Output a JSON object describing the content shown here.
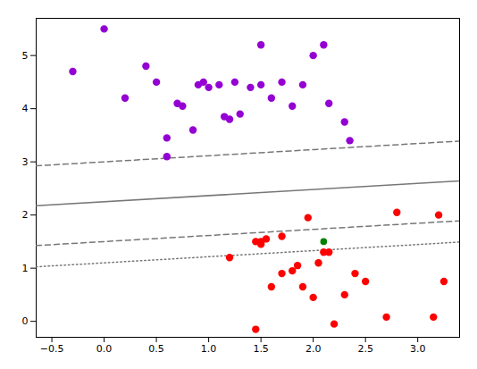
{
  "chart_data": {
    "type": "scatter",
    "xlim": [
      -0.65,
      3.4
    ],
    "ylim": [
      -0.3,
      5.7
    ],
    "xticks": [
      {
        "value": -0.5,
        "label": "−0.5"
      },
      {
        "value": 0,
        "label": "0.0"
      },
      0.5,
      {
        "value": 1,
        "label": "1.0"
      },
      1.5,
      {
        "value": 2,
        "label": "2.0"
      },
      2.5,
      {
        "value": 3,
        "label": "3.0"
      }
    ],
    "yticks": [
      0,
      1,
      2,
      3,
      4,
      5
    ],
    "grid": false,
    "series": [
      {
        "type": "scatter",
        "color": "#9400D3",
        "x": [
          -0.3,
          0.0,
          0.2,
          0.4,
          0.5,
          0.6,
          0.7,
          0.75,
          0.85,
          0.9,
          0.95,
          1.0,
          1.1,
          1.15,
          1.2,
          1.25,
          1.3,
          1.4,
          1.5,
          1.5,
          1.6,
          1.7,
          1.8,
          1.9,
          2.0,
          2.1,
          2.15,
          2.3,
          0.6,
          2.35
        ],
        "values": [
          4.7,
          5.5,
          4.2,
          4.8,
          4.5,
          3.45,
          4.1,
          4.05,
          3.6,
          4.45,
          4.5,
          4.4,
          4.45,
          3.85,
          3.8,
          4.5,
          3.9,
          4.4,
          4.45,
          5.2,
          4.2,
          4.5,
          4.05,
          4.45,
          5.0,
          5.2,
          4.1,
          3.75,
          3.1,
          3.4
        ]
      },
      {
        "type": "scatter",
        "color": "#FF0000",
        "x": [
          1.2,
          1.45,
          1.5,
          1.5,
          1.55,
          1.45,
          1.6,
          1.7,
          1.7,
          1.8,
          1.85,
          1.9,
          1.95,
          2.0,
          2.05,
          2.1,
          2.15,
          2.2,
          2.3,
          2.4,
          2.5,
          2.7,
          2.8,
          3.15,
          3.2,
          3.25
        ],
        "values": [
          1.2,
          1.5,
          1.5,
          1.45,
          1.55,
          -0.15,
          0.65,
          0.9,
          1.6,
          0.95,
          1.05,
          0.65,
          1.95,
          0.45,
          1.1,
          1.3,
          1.3,
          -0.05,
          0.5,
          0.9,
          0.75,
          0.08,
          2.05,
          0.08,
          2.0,
          0.75
        ]
      },
      {
        "type": "scatter",
        "color": "#008000",
        "x": [
          2.1
        ],
        "values": [
          1.5
        ]
      },
      {
        "type": "line",
        "color": "#777777",
        "line_style": "solid",
        "x": [
          -0.65,
          3.4
        ],
        "values": [
          2.17525,
          2.641
        ]
      },
      {
        "type": "line",
        "color": "#777777",
        "line_style": "dashed",
        "x": [
          -0.65,
          3.4
        ],
        "values": [
          2.92525,
          3.391
        ]
      },
      {
        "type": "line",
        "color": "#777777",
        "line_style": "dashed",
        "x": [
          -0.65,
          3.4
        ],
        "values": [
          1.42525,
          1.891
        ]
      },
      {
        "type": "line",
        "color": "#777777",
        "line_style": "dotted",
        "x": [
          -0.65,
          3.4
        ],
        "values": [
          1.02525,
          1.491
        ]
      }
    ]
  }
}
